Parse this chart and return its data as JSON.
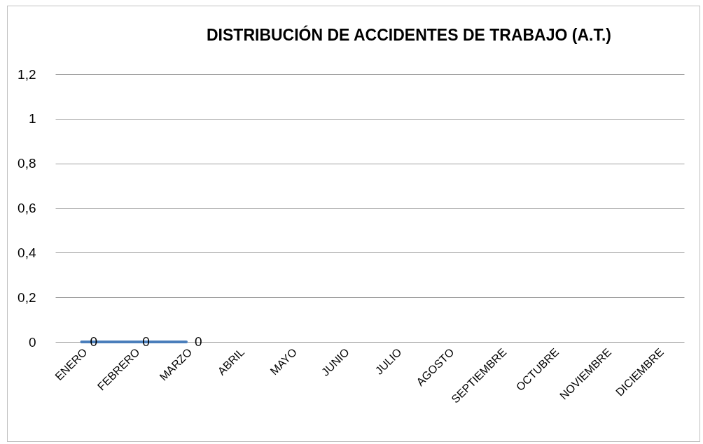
{
  "chart_data": {
    "type": "line",
    "title": "DISTRIBUCIÓN DE ACCIDENTES DE TRABAJO (A.T.)",
    "categories": [
      "ENERO",
      "FEBRERO",
      "MARZO",
      "ABRIL",
      "MAYO",
      "JUNIO",
      "JULIO",
      "AGOSTO",
      "SEPTIEMBRE",
      "OCTUBRE",
      "NOVIEMBRE",
      "DICIEMBRE"
    ],
    "series": [
      {
        "color": "#4a7ebb",
        "values": [
          0,
          0,
          0,
          null,
          null,
          null,
          null,
          null,
          null,
          null,
          null,
          null
        ]
      }
    ],
    "ylim": [
      0,
      1.2
    ],
    "yticks": [
      0,
      {
        "value": 0.2,
        "label": "0,2"
      },
      {
        "value": 0.4,
        "label": "0,4"
      },
      {
        "value": 0.6,
        "label": "0,6"
      },
      {
        "value": 0.8,
        "label": "0,8"
      },
      1,
      {
        "value": 1.2,
        "label": "1,2"
      }
    ],
    "grid": "y",
    "legend": false,
    "marker": "none",
    "line_style": "solid",
    "data_labels": true
  }
}
